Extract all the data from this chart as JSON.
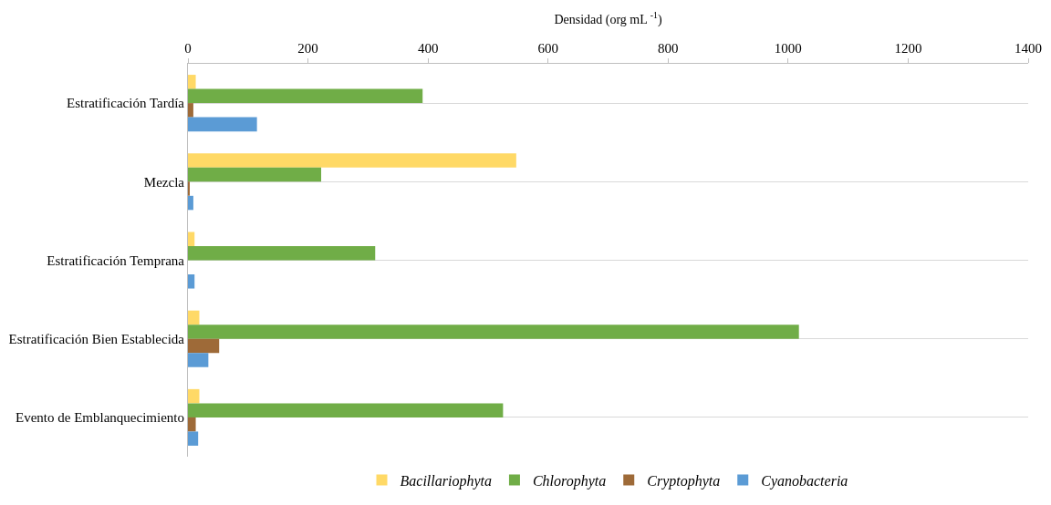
{
  "chart_data": {
    "type": "bar",
    "orientation": "horizontal",
    "xlabel": "Densidad (org mL $^{-1}$)",
    "categories": [
      "Estratificación Tardía",
      "Mezcla",
      "Estratificación Temprana",
      "Estratificación Bien Establecida",
      "Evento de Emblanquecimiento"
    ],
    "series": [
      {
        "name": "Bacillariophyta",
        "color": "#ffd966",
        "values": [
          13,
          547,
          11,
          19,
          19
        ]
      },
      {
        "name": "Chlorophyta",
        "color": "#70ad47",
        "values": [
          391,
          222,
          312,
          1018,
          525
        ]
      },
      {
        "name": "Cryptophyta",
        "color": "#9e6a38",
        "values": [
          9,
          3,
          0,
          52,
          13
        ]
      },
      {
        "name": "Cyanobacteria",
        "color": "#5b9bd5",
        "values": [
          115,
          9,
          11,
          34,
          17
        ]
      }
    ],
    "xlim": [
      0,
      1400
    ],
    "xticks": [
      0,
      200,
      400,
      600,
      800,
      1000,
      1200,
      1400
    ],
    "grid": "y",
    "legend": "bottom"
  }
}
